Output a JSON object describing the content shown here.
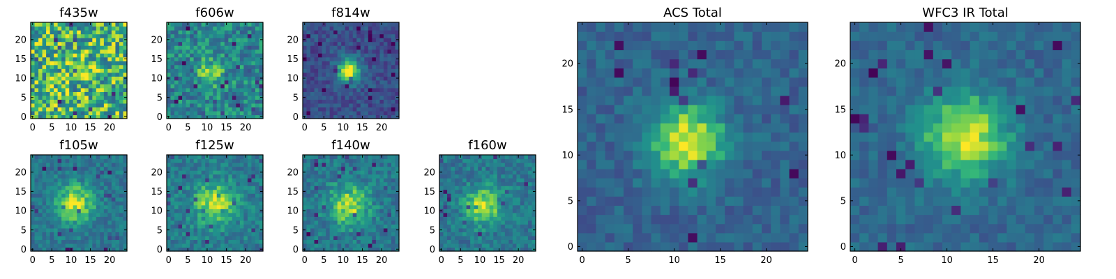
{
  "chart_data": [
    {
      "type": "heatmap",
      "title": "f435w",
      "colormap": "viridis",
      "grid": false,
      "xlim": [
        -0.5,
        24.5
      ],
      "ylim": [
        -0.5,
        24.5
      ],
      "grid_size": 25,
      "xticks": [
        0,
        5,
        10,
        15,
        20
      ],
      "yticks": [
        0,
        5,
        10,
        15,
        20
      ],
      "source": {
        "center": [
          12,
          12
        ],
        "sigma": 3.5,
        "peak": 0.08
      },
      "noise": 0.3,
      "background": 0.72
    },
    {
      "type": "heatmap",
      "title": "f606w",
      "colormap": "viridis",
      "grid": false,
      "xlim": [
        -0.5,
        24.5
      ],
      "ylim": [
        -0.5,
        24.5
      ],
      "grid_size": 25,
      "xticks": [
        0,
        5,
        10,
        15,
        20
      ],
      "yticks": [
        0,
        5,
        10,
        15,
        20
      ],
      "source": {
        "center": [
          11,
          12
        ],
        "sigma": 2.8,
        "peak": 0.28
      },
      "noise": 0.2,
      "background": 0.55
    },
    {
      "type": "heatmap",
      "title": "f814w",
      "colormap": "viridis",
      "grid": false,
      "xlim": [
        -0.5,
        24.5
      ],
      "ylim": [
        -0.5,
        24.5
      ],
      "grid_size": 25,
      "xticks": [
        0,
        5,
        10,
        15,
        20
      ],
      "yticks": [
        0,
        5,
        10,
        15,
        20
      ],
      "source": {
        "center": [
          11.5,
          12
        ],
        "sigma": 2.3,
        "peak": 0.72
      },
      "noise": 0.13,
      "background": 0.3
    },
    {
      "type": "heatmap",
      "title": "f105w",
      "colormap": "viridis",
      "grid": false,
      "xlim": [
        -0.5,
        24.5
      ],
      "ylim": [
        -0.5,
        24.5
      ],
      "grid_size": 25,
      "xticks": [
        0,
        5,
        10,
        15,
        20
      ],
      "yticks": [
        0,
        5,
        10,
        15,
        20
      ],
      "source": {
        "center": [
          11,
          12
        ],
        "sigma": 3.4,
        "peak": 0.45
      },
      "noise": 0.13,
      "background": 0.5
    },
    {
      "type": "heatmap",
      "title": "f125w",
      "colormap": "viridis",
      "grid": false,
      "xlim": [
        -0.5,
        24.5
      ],
      "ylim": [
        -0.5,
        24.5
      ],
      "grid_size": 25,
      "xticks": [
        0,
        5,
        10,
        15,
        20
      ],
      "yticks": [
        0,
        5,
        10,
        15,
        20
      ],
      "source": {
        "center": [
          12,
          12
        ],
        "sigma": 3.6,
        "peak": 0.42
      },
      "noise": 0.14,
      "background": 0.52
    },
    {
      "type": "heatmap",
      "title": "f140w",
      "colormap": "viridis",
      "grid": false,
      "xlim": [
        -0.5,
        24.5
      ],
      "ylim": [
        -0.5,
        24.5
      ],
      "grid_size": 25,
      "xticks": [
        0,
        5,
        10,
        15,
        20
      ],
      "yticks": [
        0,
        5,
        10,
        15,
        20
      ],
      "source": {
        "center": [
          11.5,
          11.5
        ],
        "sigma": 3.6,
        "peak": 0.42
      },
      "noise": 0.14,
      "background": 0.5
    },
    {
      "type": "heatmap",
      "title": "f160w",
      "colormap": "viridis",
      "grid": false,
      "xlim": [
        -0.5,
        24.5
      ],
      "ylim": [
        -0.5,
        24.5
      ],
      "grid_size": 25,
      "xticks": [
        0,
        5,
        10,
        15,
        20
      ],
      "yticks": [
        0,
        5,
        10,
        15,
        20
      ],
      "source": {
        "center": [
          11,
          11.5
        ],
        "sigma": 3.3,
        "peak": 0.45
      },
      "noise": 0.14,
      "background": 0.5
    },
    {
      "type": "heatmap",
      "title": "ACS Total",
      "colormap": "viridis",
      "grid": false,
      "xlim": [
        -0.5,
        24.5
      ],
      "ylim": [
        -0.5,
        24.5
      ],
      "grid_size": 25,
      "xticks": [
        0,
        5,
        10,
        15,
        20
      ],
      "yticks": [
        0,
        5,
        10,
        15,
        20
      ],
      "source": {
        "center": [
          11.5,
          11.5
        ],
        "sigma": 2.9,
        "peak": 0.6
      },
      "noise": 0.11,
      "background": 0.4
    },
    {
      "type": "heatmap",
      "title": "WFC3 IR Total",
      "colormap": "viridis",
      "grid": false,
      "xlim": [
        -0.5,
        24.5
      ],
      "ylim": [
        -0.5,
        24.5
      ],
      "grid_size": 25,
      "xticks": [
        0,
        5,
        10,
        15,
        20
      ],
      "yticks": [
        0,
        5,
        10,
        15,
        20
      ],
      "source": {
        "center": [
          12,
          12
        ],
        "sigma": 3.4,
        "peak": 0.55
      },
      "noise": 0.1,
      "background": 0.42
    }
  ]
}
